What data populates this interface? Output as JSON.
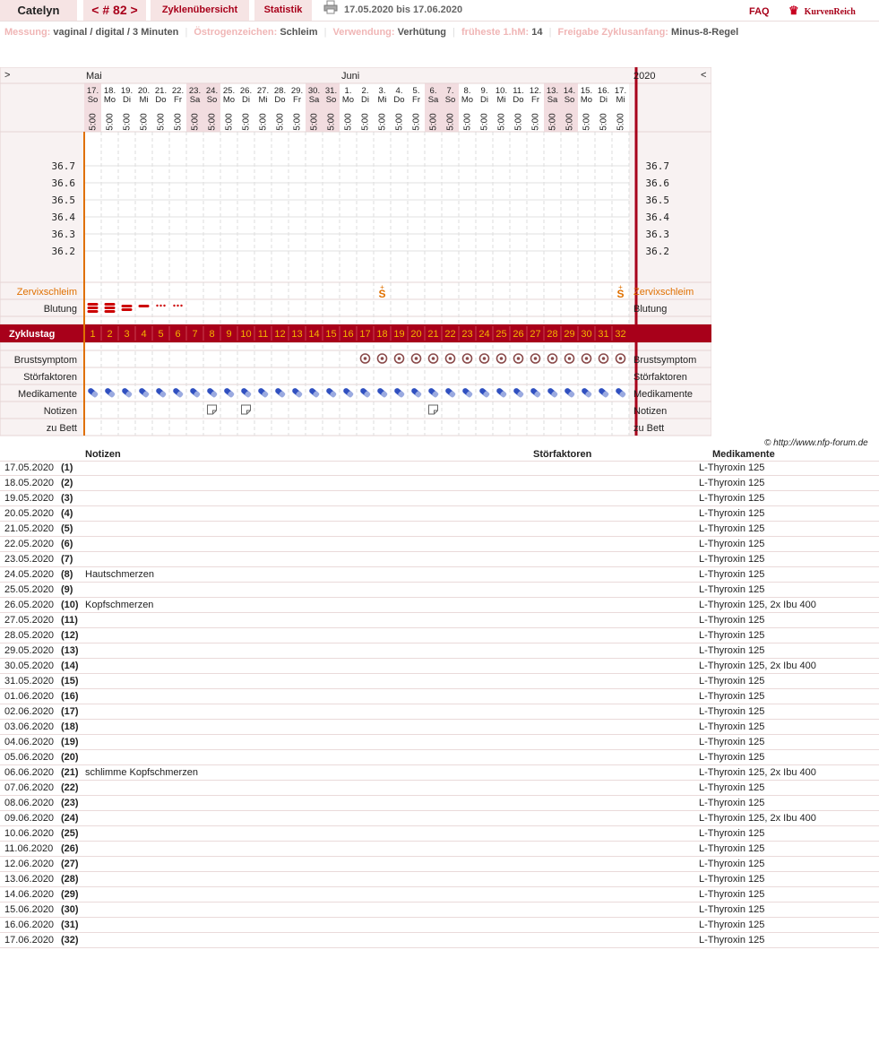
{
  "header": {
    "user": "Catelyn",
    "cycle_nav": {
      "prev": "<",
      "label": "# 82",
      "next": ">"
    },
    "overview": "Zyklenübersicht",
    "stats": "Statistik",
    "print_icon": "printer-icon",
    "date_range": "17.05.2020 bis 17.06.2020",
    "faq": "FAQ",
    "logo": "KurvenReich",
    "logo_icon": "crown-icon"
  },
  "info": {
    "measurement_label": "Messung:",
    "measurement": "vaginal / digital / 3 Minuten",
    "estrogen_label": "Östrogenzeichen:",
    "estrogen": "Schleim",
    "usage_label": "Verwendung:",
    "usage": "Verhütung",
    "earliest_label": "früheste 1.hM:",
    "earliest": "14",
    "release_label": "Freigabe Zyklusanfang:",
    "release": "Minus-8-Regel"
  },
  "chart": {
    "left_arrow": ">",
    "right_arrow": "<",
    "year": "2020",
    "months": [
      {
        "label": "Mai",
        "col": 0
      },
      {
        "label": "Juni",
        "col": 15
      }
    ],
    "days": [
      {
        "d": "17.",
        "w": "So"
      },
      {
        "d": "18.",
        "w": "Mo"
      },
      {
        "d": "19.",
        "w": "Di"
      },
      {
        "d": "20.",
        "w": "Mi"
      },
      {
        "d": "21.",
        "w": "Do"
      },
      {
        "d": "22.",
        "w": "Fr"
      },
      {
        "d": "23.",
        "w": "Sa"
      },
      {
        "d": "24.",
        "w": "So"
      },
      {
        "d": "25.",
        "w": "Mo"
      },
      {
        "d": "26.",
        "w": "Di"
      },
      {
        "d": "27.",
        "w": "Mi"
      },
      {
        "d": "28.",
        "w": "Do"
      },
      {
        "d": "29.",
        "w": "Fr"
      },
      {
        "d": "30.",
        "w": "Sa"
      },
      {
        "d": "31.",
        "w": "So"
      },
      {
        "d": "1.",
        "w": "Mo"
      },
      {
        "d": "2.",
        "w": "Di"
      },
      {
        "d": "3.",
        "w": "Mi"
      },
      {
        "d": "4.",
        "w": "Do"
      },
      {
        "d": "5.",
        "w": "Fr"
      },
      {
        "d": "6.",
        "w": "Sa"
      },
      {
        "d": "7.",
        "w": "So"
      },
      {
        "d": "8.",
        "w": "Mo"
      },
      {
        "d": "9.",
        "w": "Di"
      },
      {
        "d": "10.",
        "w": "Mi"
      },
      {
        "d": "11.",
        "w": "Do"
      },
      {
        "d": "12.",
        "w": "Fr"
      },
      {
        "d": "13.",
        "w": "Sa"
      },
      {
        "d": "14.",
        "w": "So"
      },
      {
        "d": "15.",
        "w": "Mo"
      },
      {
        "d": "16.",
        "w": "Di"
      },
      {
        "d": "17.",
        "w": "Mi"
      }
    ],
    "time": "5:00",
    "temps": [
      "36.7",
      "36.6",
      "36.5",
      "36.4",
      "36.3",
      "36.2"
    ],
    "rows": {
      "cervix": "Zervixschleim",
      "bleeding": "Blutung",
      "cycle_day": "Zyklustag",
      "breast": "Brustsymptom",
      "disturb": "Störfaktoren",
      "meds": "Medikamente",
      "notes": "Notizen",
      "bed": "zu Bett"
    },
    "cervix_marks": [
      {
        "col": 17,
        "symbol": "S",
        "top": "+"
      },
      {
        "col": 31,
        "symbol": "S",
        "top": "+"
      }
    ],
    "bleeding": [
      "heavy",
      "heavy",
      "medium",
      "light",
      "spotting",
      "spotting"
    ],
    "breast_from_col": 16,
    "meds_icon": "pill-icon",
    "note_icon": "note-icon",
    "breast_icon": "breast-symptom-icon",
    "note_cols": [
      7,
      9,
      20
    ],
    "colors": {
      "accent": "#a8001a",
      "cycle_bar": "#a8001a",
      "cycle_num": "#f5b400",
      "orange": "#e07000",
      "weekend": "#f2dde0",
      "bleed": "#cc0000"
    }
  },
  "notes": {
    "copyright": "© http://www.nfp-forum.de",
    "h_notes": "Notizen",
    "h_disturb": "Störfaktoren",
    "h_meds": "Medikamente",
    "rows": [
      {
        "date": "17.05.2020",
        "cd": "(1)",
        "note": "",
        "meds": "L-Thyroxin 125"
      },
      {
        "date": "18.05.2020",
        "cd": "(2)",
        "note": "",
        "meds": "L-Thyroxin 125"
      },
      {
        "date": "19.05.2020",
        "cd": "(3)",
        "note": "",
        "meds": "L-Thyroxin 125"
      },
      {
        "date": "20.05.2020",
        "cd": "(4)",
        "note": "",
        "meds": "L-Thyroxin 125"
      },
      {
        "date": "21.05.2020",
        "cd": "(5)",
        "note": "",
        "meds": "L-Thyroxin 125"
      },
      {
        "date": "22.05.2020",
        "cd": "(6)",
        "note": "",
        "meds": "L-Thyroxin 125"
      },
      {
        "date": "23.05.2020",
        "cd": "(7)",
        "note": "",
        "meds": "L-Thyroxin 125"
      },
      {
        "date": "24.05.2020",
        "cd": "(8)",
        "note": "Hautschmerzen",
        "meds": "L-Thyroxin 125"
      },
      {
        "date": "25.05.2020",
        "cd": "(9)",
        "note": "",
        "meds": "L-Thyroxin 125"
      },
      {
        "date": "26.05.2020",
        "cd": "(10)",
        "note": "Kopfschmerzen",
        "meds": "L-Thyroxin 125, 2x Ibu 400"
      },
      {
        "date": "27.05.2020",
        "cd": "(11)",
        "note": "",
        "meds": "L-Thyroxin 125"
      },
      {
        "date": "28.05.2020",
        "cd": "(12)",
        "note": "",
        "meds": "L-Thyroxin 125"
      },
      {
        "date": "29.05.2020",
        "cd": "(13)",
        "note": "",
        "meds": "L-Thyroxin 125"
      },
      {
        "date": "30.05.2020",
        "cd": "(14)",
        "note": "",
        "meds": "L-Thyroxin 125, 2x Ibu 400"
      },
      {
        "date": "31.05.2020",
        "cd": "(15)",
        "note": "",
        "meds": "L-Thyroxin 125"
      },
      {
        "date": "01.06.2020",
        "cd": "(16)",
        "note": "",
        "meds": "L-Thyroxin 125"
      },
      {
        "date": "02.06.2020",
        "cd": "(17)",
        "note": "",
        "meds": "L-Thyroxin 125"
      },
      {
        "date": "03.06.2020",
        "cd": "(18)",
        "note": "",
        "meds": "L-Thyroxin 125"
      },
      {
        "date": "04.06.2020",
        "cd": "(19)",
        "note": "",
        "meds": "L-Thyroxin 125"
      },
      {
        "date": "05.06.2020",
        "cd": "(20)",
        "note": "",
        "meds": "L-Thyroxin 125"
      },
      {
        "date": "06.06.2020",
        "cd": "(21)",
        "note": "schlimme Kopfschmerzen",
        "meds": "L-Thyroxin 125, 2x Ibu 400"
      },
      {
        "date": "07.06.2020",
        "cd": "(22)",
        "note": "",
        "meds": "L-Thyroxin 125"
      },
      {
        "date": "08.06.2020",
        "cd": "(23)",
        "note": "",
        "meds": "L-Thyroxin 125"
      },
      {
        "date": "09.06.2020",
        "cd": "(24)",
        "note": "",
        "meds": "L-Thyroxin 125, 2x Ibu 400"
      },
      {
        "date": "10.06.2020",
        "cd": "(25)",
        "note": "",
        "meds": "L-Thyroxin 125"
      },
      {
        "date": "11.06.2020",
        "cd": "(26)",
        "note": "",
        "meds": "L-Thyroxin 125"
      },
      {
        "date": "12.06.2020",
        "cd": "(27)",
        "note": "",
        "meds": "L-Thyroxin 125"
      },
      {
        "date": "13.06.2020",
        "cd": "(28)",
        "note": "",
        "meds": "L-Thyroxin 125"
      },
      {
        "date": "14.06.2020",
        "cd": "(29)",
        "note": "",
        "meds": "L-Thyroxin 125"
      },
      {
        "date": "15.06.2020",
        "cd": "(30)",
        "note": "",
        "meds": "L-Thyroxin 125"
      },
      {
        "date": "16.06.2020",
        "cd": "(31)",
        "note": "",
        "meds": "L-Thyroxin 125"
      },
      {
        "date": "17.06.2020",
        "cd": "(32)",
        "note": "",
        "meds": "L-Thyroxin 125"
      }
    ]
  }
}
